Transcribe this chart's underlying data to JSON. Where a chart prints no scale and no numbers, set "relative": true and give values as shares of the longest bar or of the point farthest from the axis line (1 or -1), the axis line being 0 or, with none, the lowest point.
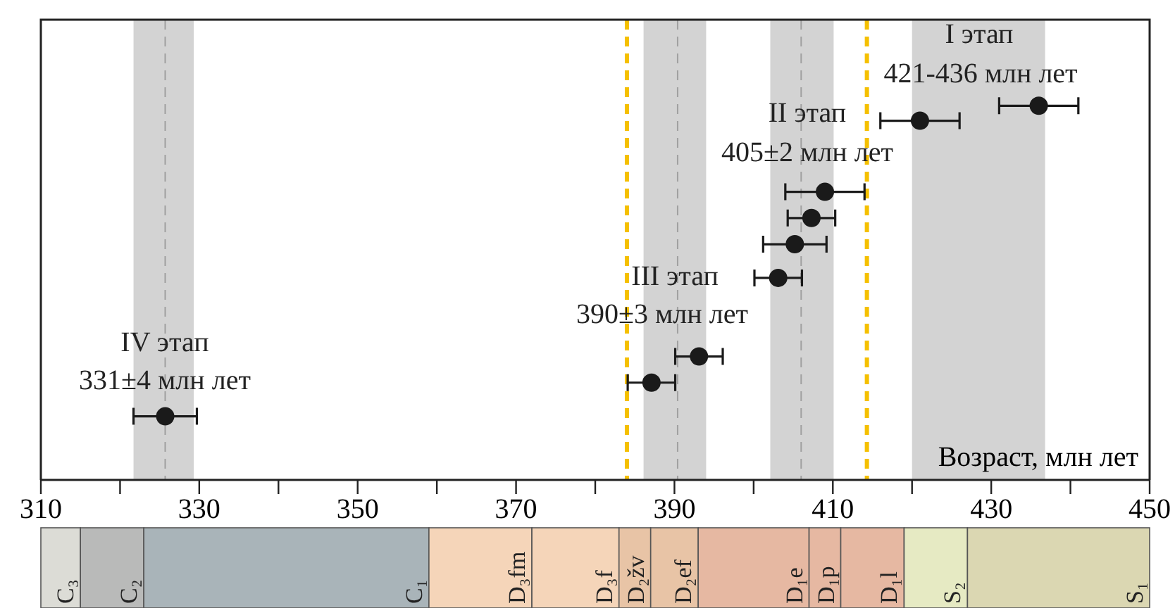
{
  "chart_data": [
    {
      "type": "scatter",
      "xlabel": "Возраст, млн лет",
      "relative": true,
      "marker": "circle",
      "tick_labels": "x",
      "xlim": [
        310,
        450
      ],
      "xticks": [
        310,
        {
          "value": 320,
          "label": null
        },
        330,
        {
          "value": 340,
          "label": null
        },
        350,
        {
          "value": 360,
          "label": null
        },
        370,
        {
          "value": 380,
          "label": null
        },
        390,
        {
          "value": 400,
          "label": null
        },
        410,
        {
          "value": 420,
          "label": null
        },
        430,
        {
          "value": 440,
          "label": null
        },
        450
      ],
      "series": [
        {
          "type": "scatter",
          "color": "#1a1a1a",
          "x": [
            436,
            421,
            409,
            407.3,
            405.2,
            403.1,
            393.1,
            387.1,
            325.7
          ],
          "values": [
            1,
            0.96,
            0.77,
            0.7,
            0.63,
            0.54,
            0.33,
            0.26,
            0.17
          ],
          "xerrors": [
            5,
            5,
            5,
            3,
            4,
            3,
            3,
            3,
            4
          ]
        }
      ],
      "bands": [
        {
          "axis": "x",
          "from": 321.7,
          "to": 329.3,
          "color": "#d3d3d3"
        },
        {
          "axis": "x",
          "from": 386.1,
          "to": 394,
          "color": "#d3d3d3"
        },
        {
          "axis": "x",
          "from": 402.1,
          "to": 410.1,
          "color": "#d3d3d3"
        },
        {
          "axis": "x",
          "from": 420,
          "to": 436.8,
          "color": "#d3d3d3"
        }
      ],
      "ref_lines": [
        {
          "axis": "x",
          "value": 325.7,
          "color": "#a0a0a0",
          "line_style": "dashed"
        },
        {
          "axis": "x",
          "value": 390.4,
          "color": "#a0a0a0",
          "line_style": "dashed"
        },
        {
          "axis": "x",
          "value": 406,
          "color": "#a0a0a0",
          "line_style": "dashed"
        },
        {
          "axis": "x",
          "value": 384,
          "color": "#f5c000",
          "line_style": "dashed"
        },
        {
          "axis": "x",
          "value": 414.3,
          "color": "#f5c000",
          "line_style": "dashed"
        }
      ],
      "annotations": [
        "I этап",
        "421-436 млн лет",
        "II этап",
        "405±2 млн лет",
        "III этап",
        "390±3 млн лет",
        "IV этап",
        "331±4 млн лет"
      ]
    },
    {
      "type": "bar",
      "orientation": "horizontal",
      "tick_labels": false,
      "xlim": [
        310,
        450
      ],
      "categories": [
        null
      ],
      "series": [
        {
          "name": "C₃",
          "color": "#dcdcd6",
          "base": [
            310
          ],
          "values": [
            5
          ]
        },
        {
          "name": "C₂",
          "color": "#b9bab9",
          "base": [
            315
          ],
          "values": [
            8
          ]
        },
        {
          "name": "C₁",
          "color": "#a9b4b9",
          "base": [
            323
          ],
          "values": [
            36
          ]
        },
        {
          "name": "D₃fm",
          "color": "#f5d5b9",
          "base": [
            359
          ],
          "values": [
            13
          ]
        },
        {
          "name": "D₃f",
          "color": "#f5d5b9",
          "base": [
            372
          ],
          "values": [
            11
          ]
        },
        {
          "name": "D₂žv",
          "color": "#e8c4a6",
          "base": [
            383
          ],
          "values": [
            4
          ]
        },
        {
          "name": "D₂ef",
          "color": "#e8c4a6",
          "base": [
            387
          ],
          "values": [
            6
          ]
        },
        {
          "name": "D₁e",
          "color": "#e6b8a2",
          "base": [
            393
          ],
          "values": [
            14
          ]
        },
        {
          "name": "D₁p",
          "color": "#e6b8a2",
          "base": [
            407
          ],
          "values": [
            4
          ]
        },
        {
          "name": "D₁l",
          "color": "#e6b8a2",
          "base": [
            411
          ],
          "values": [
            8
          ]
        },
        {
          "name": "S₂",
          "color": "#e6eac3",
          "base": [
            419
          ],
          "values": [
            8
          ]
        },
        {
          "name": "S₁",
          "color": "#dbd7b2",
          "base": [
            427
          ],
          "values": [
            23
          ]
        }
      ]
    }
  ]
}
